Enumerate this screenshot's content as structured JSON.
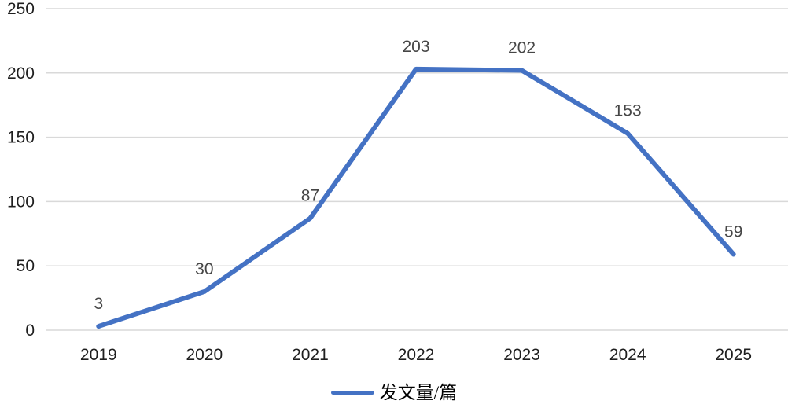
{
  "chart_data": {
    "type": "line",
    "title": "",
    "xlabel": "",
    "ylabel": "",
    "categories": [
      "2019",
      "2020",
      "2021",
      "2022",
      "2023",
      "2024",
      "2025"
    ],
    "series": [
      {
        "name": "发文量/篇",
        "values": [
          3,
          30,
          87,
          203,
          202,
          153,
          59
        ],
        "color": "#4472C4",
        "data_labels": [
          "3",
          "30",
          "87",
          "203",
          "202",
          "153",
          "59"
        ]
      }
    ],
    "y_axis": {
      "min": 0,
      "max": 250,
      "step": 50,
      "tick_labels": [
        "0",
        "50",
        "100",
        "150",
        "200",
        "250"
      ]
    },
    "grid": "horizontal",
    "colors": {
      "line": "#4472C4",
      "gridline": "#D9D9D9",
      "axis_tick_label": "#1f1f1f",
      "data_label": "#464646",
      "legend_text": "#000000",
      "background": "#ffffff"
    },
    "legend": {
      "position": "bottom-center",
      "entries": [
        {
          "label": "发文量/篇",
          "marker": "line",
          "marker_color": "#4472C4"
        }
      ]
    }
  }
}
